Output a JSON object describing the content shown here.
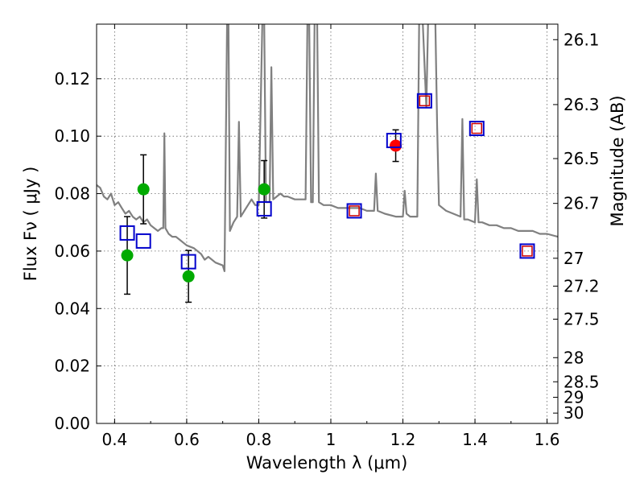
{
  "chart_data": {
    "type": "scatter",
    "xlabel": "Wavelength  λ (μm)",
    "ylabel": "Flux  Fν  ( μJy )",
    "ylabel_right": "Magnitude (AB)",
    "xlim": [
      0.35,
      1.63
    ],
    "ylim": [
      0.0,
      0.139
    ],
    "grid": true,
    "x_ticks": [
      0.4,
      0.6,
      0.8,
      1.0,
      1.2,
      1.4,
      1.6
    ],
    "x_tick_labels": [
      "0.4",
      "0.6",
      "0.8",
      "1",
      "1.2",
      "1.4",
      "1.6"
    ],
    "y_ticks": [
      0.0,
      0.02,
      0.04,
      0.06,
      0.08,
      0.1,
      0.12
    ],
    "y_tick_labels": [
      "0.00",
      "0.02",
      "0.04",
      "0.06",
      "0.08",
      "0.10",
      "0.12"
    ],
    "right_ticks": [
      {
        "flux": 0.1336,
        "label": "26.1"
      },
      {
        "flux": 0.111,
        "label": "26.3"
      },
      {
        "flux": 0.0922,
        "label": "26.5"
      },
      {
        "flux": 0.0766,
        "label": "26.7"
      },
      {
        "flux": 0.0575,
        "label": "27"
      },
      {
        "flux": 0.0478,
        "label": "27.2"
      },
      {
        "flux": 0.0363,
        "label": "27.5"
      },
      {
        "flux": 0.0229,
        "label": "28"
      },
      {
        "flux": 0.0145,
        "label": "28.5"
      },
      {
        "flux": 0.0091,
        "label": "29"
      },
      {
        "flux": 0.0036,
        "label": "30"
      }
    ],
    "series": [
      {
        "name": "model spectrum",
        "kind": "line",
        "color": "#808080",
        "points": [
          [
            0.35,
            0.083
          ],
          [
            0.36,
            0.082
          ],
          [
            0.37,
            0.079
          ],
          [
            0.38,
            0.078
          ],
          [
            0.39,
            0.08
          ],
          [
            0.4,
            0.076
          ],
          [
            0.41,
            0.077
          ],
          [
            0.42,
            0.075
          ],
          [
            0.43,
            0.073
          ],
          [
            0.44,
            0.074
          ],
          [
            0.45,
            0.072
          ],
          [
            0.46,
            0.071
          ],
          [
            0.47,
            0.072
          ],
          [
            0.48,
            0.07
          ],
          [
            0.49,
            0.071
          ],
          [
            0.5,
            0.069
          ],
          [
            0.51,
            0.068
          ],
          [
            0.52,
            0.067
          ],
          [
            0.53,
            0.068
          ],
          [
            0.535,
            0.068
          ],
          [
            0.538,
            0.101
          ],
          [
            0.541,
            0.068
          ],
          [
            0.55,
            0.066
          ],
          [
            0.56,
            0.065
          ],
          [
            0.57,
            0.065
          ],
          [
            0.58,
            0.064
          ],
          [
            0.59,
            0.063
          ],
          [
            0.6,
            0.062
          ],
          [
            0.62,
            0.061
          ],
          [
            0.64,
            0.059
          ],
          [
            0.65,
            0.057
          ],
          [
            0.66,
            0.058
          ],
          [
            0.68,
            0.056
          ],
          [
            0.7,
            0.055
          ],
          [
            0.705,
            0.053
          ],
          [
            0.712,
            0.14
          ],
          [
            0.716,
            0.14
          ],
          [
            0.72,
            0.067
          ],
          [
            0.73,
            0.07
          ],
          [
            0.74,
            0.072
          ],
          [
            0.745,
            0.105
          ],
          [
            0.75,
            0.072
          ],
          [
            0.76,
            0.074
          ],
          [
            0.77,
            0.076
          ],
          [
            0.78,
            0.078
          ],
          [
            0.79,
            0.076
          ],
          [
            0.8,
            0.076
          ],
          [
            0.81,
            0.14
          ],
          [
            0.815,
            0.14
          ],
          [
            0.82,
            0.077
          ],
          [
            0.83,
            0.077
          ],
          [
            0.835,
            0.124
          ],
          [
            0.84,
            0.078
          ],
          [
            0.85,
            0.079
          ],
          [
            0.86,
            0.08
          ],
          [
            0.87,
            0.079
          ],
          [
            0.88,
            0.079
          ],
          [
            0.9,
            0.078
          ],
          [
            0.92,
            0.078
          ],
          [
            0.93,
            0.078
          ],
          [
            0.935,
            0.14
          ],
          [
            0.94,
            0.14
          ],
          [
            0.945,
            0.077
          ],
          [
            0.95,
            0.077
          ],
          [
            0.955,
            0.14
          ],
          [
            0.962,
            0.14
          ],
          [
            0.967,
            0.077
          ],
          [
            0.98,
            0.076
          ],
          [
            1.0,
            0.076
          ],
          [
            1.02,
            0.075
          ],
          [
            1.04,
            0.075
          ],
          [
            1.06,
            0.075
          ],
          [
            1.08,
            0.075
          ],
          [
            1.1,
            0.074
          ],
          [
            1.12,
            0.074
          ],
          [
            1.125,
            0.087
          ],
          [
            1.13,
            0.074
          ],
          [
            1.15,
            0.073
          ],
          [
            1.18,
            0.072
          ],
          [
            1.2,
            0.072
          ],
          [
            1.205,
            0.081
          ],
          [
            1.21,
            0.073
          ],
          [
            1.22,
            0.072
          ],
          [
            1.23,
            0.072
          ],
          [
            1.24,
            0.072
          ],
          [
            1.245,
            0.14
          ],
          [
            1.255,
            0.14
          ],
          [
            1.265,
            0.11
          ],
          [
            1.27,
            0.14
          ],
          [
            1.29,
            0.14
          ],
          [
            1.295,
            0.104
          ],
          [
            1.3,
            0.076
          ],
          [
            1.32,
            0.074
          ],
          [
            1.34,
            0.073
          ],
          [
            1.36,
            0.072
          ],
          [
            1.365,
            0.106
          ],
          [
            1.37,
            0.071
          ],
          [
            1.38,
            0.071
          ],
          [
            1.4,
            0.07
          ],
          [
            1.405,
            0.085
          ],
          [
            1.41,
            0.07
          ],
          [
            1.42,
            0.07
          ],
          [
            1.44,
            0.069
          ],
          [
            1.46,
            0.069
          ],
          [
            1.48,
            0.068
          ],
          [
            1.5,
            0.068
          ],
          [
            1.52,
            0.067
          ],
          [
            1.54,
            0.067
          ],
          [
            1.56,
            0.067
          ],
          [
            1.58,
            0.066
          ],
          [
            1.6,
            0.066
          ],
          [
            1.63,
            0.065
          ]
        ]
      },
      {
        "name": "photometry (green)",
        "kind": "points",
        "color": "#00aa00",
        "points": [
          {
            "x": 0.435,
            "y": 0.0585,
            "err": 0.0135
          },
          {
            "x": 0.48,
            "y": 0.0815,
            "err": 0.012
          },
          {
            "x": 0.605,
            "y": 0.0512,
            "err": 0.009
          },
          {
            "x": 0.815,
            "y": 0.0815,
            "err": 0.01
          }
        ]
      },
      {
        "name": "photometry (red)",
        "kind": "points",
        "color": "#ff0000",
        "points": [
          {
            "x": 1.18,
            "y": 0.0967,
            "err": 0.0055
          }
        ]
      },
      {
        "name": "model photometry (blue squares)",
        "kind": "squares",
        "color": "#0000cc",
        "points": [
          [
            0.435,
            0.0663
          ],
          [
            0.48,
            0.0635
          ],
          [
            0.605,
            0.0563
          ],
          [
            0.815,
            0.0747
          ],
          [
            1.065,
            0.074
          ],
          [
            1.175,
            0.0985
          ],
          [
            1.26,
            0.1123
          ],
          [
            1.405,
            0.1027
          ],
          [
            1.545,
            0.06
          ]
        ]
      },
      {
        "name": "model photometry (red squares)",
        "kind": "squares",
        "color": "#cc0000",
        "points": [
          [
            1.065,
            0.074
          ],
          [
            1.26,
            0.1123
          ],
          [
            1.405,
            0.1027
          ],
          [
            1.545,
            0.06
          ]
        ]
      }
    ]
  }
}
